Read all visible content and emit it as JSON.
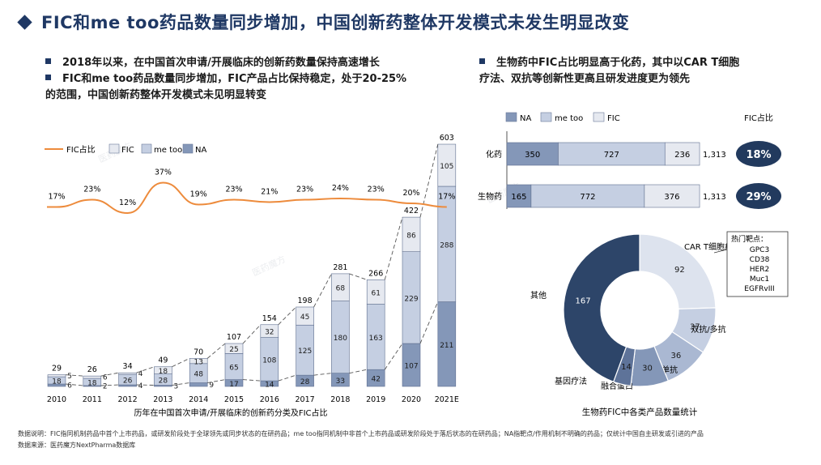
{
  "title": "FIC和me too药品数量同步增加，中国创新药整体开发模式未发生明显改变",
  "left_bullets": [
    "2018年以来，在中国首次申请/开展临床的创新药数量保持高速增长",
    "FIC和me too药品数量同步增加，FIC产品占比保持稳定，处于20-25%",
    "的范围，中国创新药整体开发模式未见明显转变"
  ],
  "right_bullets": [
    "生物药中FIC占比明显高于化药，其中以CAR T细胞",
    "疗法、双抗等创新性更高且研发进度更为领先"
  ],
  "notes": [
    "数据说明：FIC指同机制药品中首个上市药品，或研发阶段处于全球领先或同步状态的在研药品；me too指同机制中非首个上市药品或研发阶段处于落后状态的在研药品；NA指靶点/作用机制不明确的药品；仅统计中国自主研发或引进的产品",
    "数据来源：医药魔方NextPharma数据库"
  ],
  "colors": {
    "NA": "#8497b8",
    "metoo": "#c5cfe2",
    "FIC": "#e6e9f0",
    "line": "#ed8b3c",
    "dark": "#223a5e"
  },
  "chart_data": [
    {
      "type": "bar",
      "stacked": true,
      "xlabel": "历年在中国首次申请/开展临床的创新药分类及FIC占比",
      "categories": [
        "2010",
        "2011",
        "2012",
        "2013",
        "2014",
        "2015",
        "2016",
        "2017",
        "2018",
        "2019",
        "2020",
        "2021E"
      ],
      "legend": [
        "FIC占比",
        "FIC",
        "me too",
        "NA"
      ],
      "series": [
        {
          "name": "NA",
          "values": [
            6,
            2,
            4,
            3,
            9,
            17,
            14,
            28,
            33,
            42,
            107,
            211
          ]
        },
        {
          "name": "me too",
          "values": [
            18,
            18,
            26,
            28,
            48,
            65,
            108,
            125,
            180,
            163,
            229,
            288
          ]
        },
        {
          "name": "FIC",
          "values": [
            5,
            6,
            4,
            18,
            13,
            25,
            32,
            45,
            68,
            61,
            86,
            105
          ]
        }
      ],
      "totals": [
        29,
        26,
        34,
        49,
        70,
        107,
        154,
        198,
        281,
        266,
        422,
        603
      ],
      "fic_share": [
        "17%",
        "23%",
        "12%",
        "37%",
        "19%",
        "23%",
        "21%",
        "23%",
        "24%",
        "23%",
        "20%",
        "17%"
      ],
      "fic_share_values": [
        17,
        23,
        12,
        37,
        19,
        23,
        21,
        23,
        24,
        23,
        20,
        17
      ]
    },
    {
      "type": "bar",
      "orientation": "horizontal",
      "stacked": true,
      "categories": [
        "化药",
        "生物药"
      ],
      "legend": [
        "NA",
        "me too",
        "FIC"
      ],
      "series": [
        {
          "name": "NA",
          "values": [
            350,
            165
          ]
        },
        {
          "name": "me too",
          "values": [
            727,
            772
          ]
        },
        {
          "name": "FIC",
          "values": [
            236,
            376
          ]
        }
      ],
      "totals": [
        "1,313",
        "1,313"
      ],
      "fic_share_header": "FIC占比",
      "fic_share": [
        "18%",
        "29%"
      ]
    },
    {
      "type": "pie",
      "donut": true,
      "title": "生物药FIC中各类产品数量统计",
      "labels": [
        "CAR T细胞疗法",
        "双抗/多抗",
        "单抗",
        "融合蛋白",
        "基因疗法",
        "其他"
      ],
      "values": [
        92,
        37,
        36,
        30,
        14,
        167
      ],
      "callout_title": "热门靶点：",
      "callout_items": [
        "GPC3",
        "CD38",
        "HER2",
        "Muc1",
        "EGFRvIII"
      ]
    }
  ]
}
